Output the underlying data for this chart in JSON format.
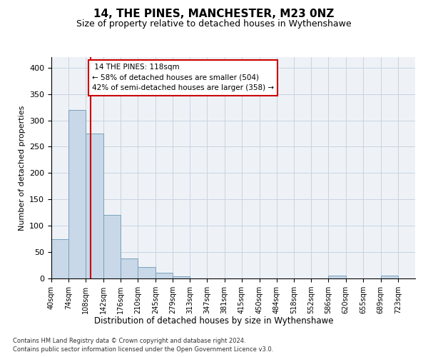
{
  "title": "14, THE PINES, MANCHESTER, M23 0NZ",
  "subtitle": "Size of property relative to detached houses in Wythenshawe",
  "xlabel": "Distribution of detached houses by size in Wythenshawe",
  "ylabel": "Number of detached properties",
  "footnote1": "Contains HM Land Registry data © Crown copyright and database right 2024.",
  "footnote2": "Contains public sector information licensed under the Open Government Licence v3.0.",
  "property_label": "14 THE PINES: 118sqm",
  "pct_smaller": 58,
  "count_smaller": 504,
  "pct_larger": 42,
  "count_larger": 358,
  "bin_edges": [
    40,
    74,
    108,
    142,
    176,
    210,
    245,
    279,
    313,
    347,
    381,
    415,
    450,
    484,
    518,
    552,
    586,
    620,
    655,
    689,
    723
  ],
  "bar_heights": [
    75,
    320,
    275,
    120,
    38,
    22,
    11,
    4,
    0,
    0,
    0,
    0,
    0,
    0,
    0,
    0,
    5,
    0,
    0,
    5
  ],
  "bar_color": "#c8d8e8",
  "bar_edgecolor": "#7aa0bb",
  "vline_color": "#cc0000",
  "vline_x": 118,
  "ylim": [
    0,
    420
  ],
  "annotation_box_edgecolor": "#cc0000",
  "grid_color": "#c8d4e0",
  "background_color": "#eef2f7",
  "title_fontsize": 11,
  "subtitle_fontsize": 9,
  "ylabel_fontsize": 8,
  "xlabel_fontsize": 8.5,
  "tick_fontsize": 7,
  "annotation_fontsize": 7.5,
  "footnote_fontsize": 6
}
